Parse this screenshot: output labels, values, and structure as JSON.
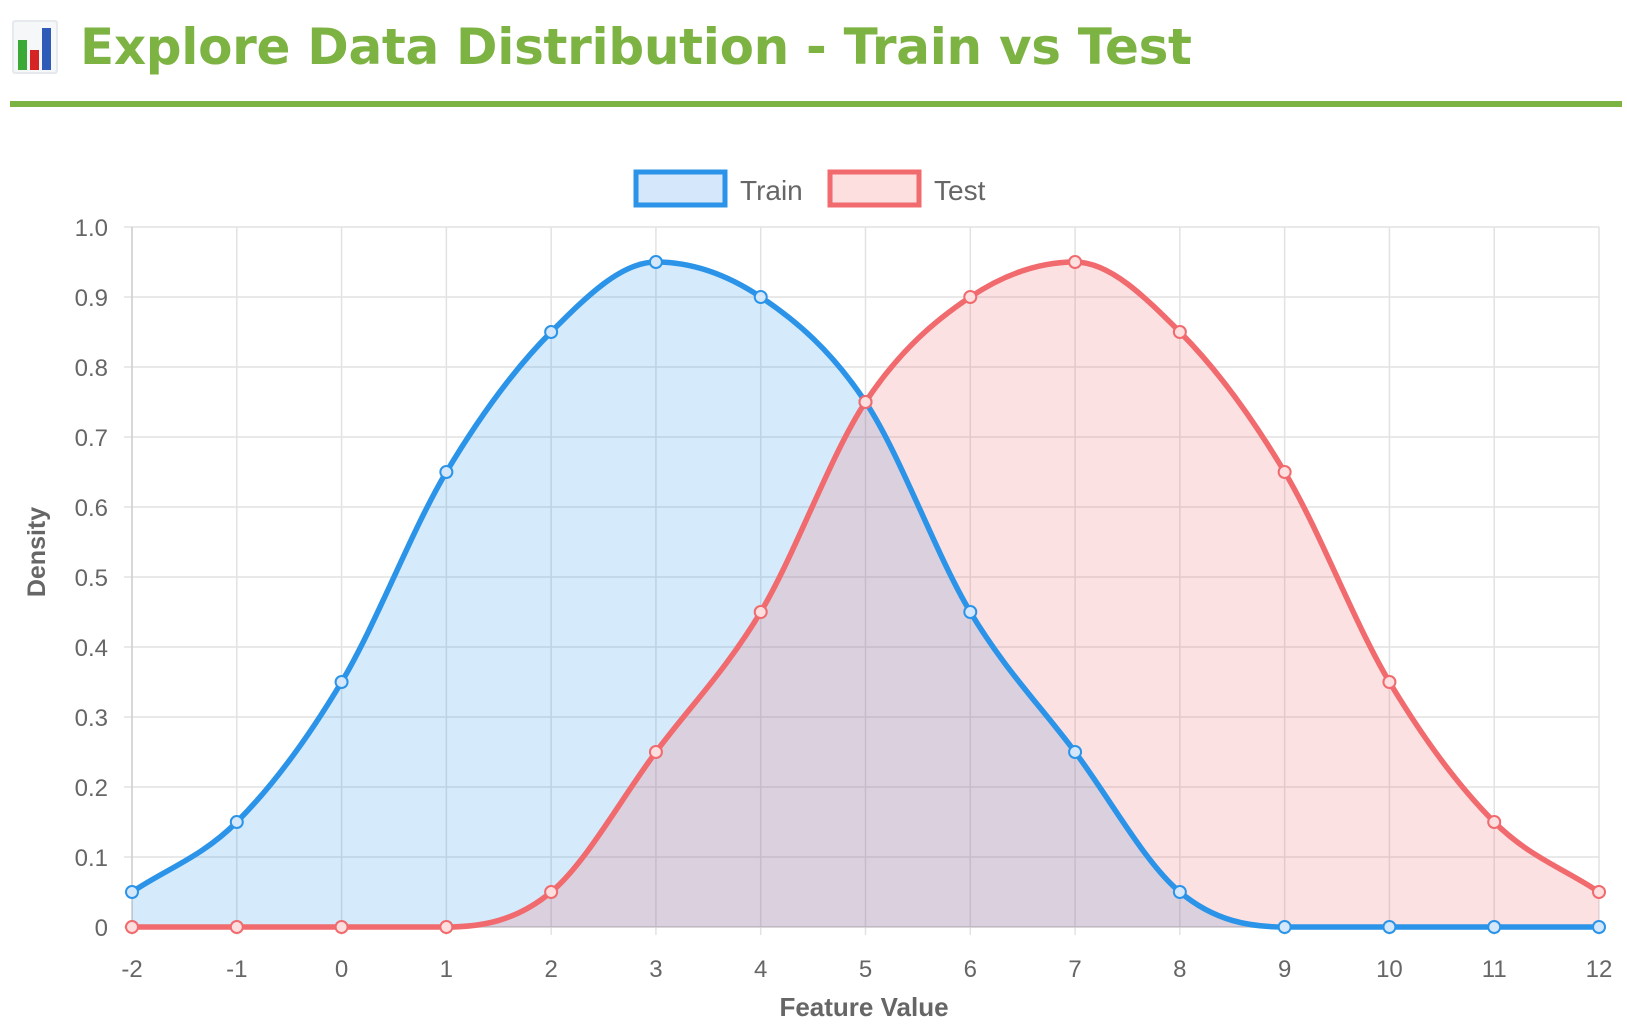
{
  "page": {
    "title": "Explore Data Distribution - Train vs Test",
    "icon": "bar-chart-icon",
    "accent_color": "#7cb342"
  },
  "chart_data": {
    "type": "line",
    "subtype": "filled-area",
    "x": [
      -2,
      -1,
      0,
      1,
      2,
      3,
      4,
      5,
      6,
      7,
      8,
      9,
      10,
      11,
      12
    ],
    "series": [
      {
        "name": "Train",
        "values": [
          0.05,
          0.15,
          0.35,
          0.65,
          0.85,
          0.95,
          0.9,
          0.75,
          0.45,
          0.25,
          0.05,
          0,
          0,
          0,
          0
        ],
        "line_color": "#2b94e8",
        "fill_color": "#d4e7fb"
      },
      {
        "name": "Test",
        "values": [
          0,
          0,
          0,
          0,
          0.05,
          0.25,
          0.45,
          0.75,
          0.9,
          0.95,
          0.85,
          0.65,
          0.35,
          0.15,
          0.05
        ],
        "line_color": "#f06a6e",
        "fill_color": "#fddfe0"
      }
    ],
    "xlabel": "Feature Value",
    "ylabel": "Density",
    "xlim": [
      -2,
      12
    ],
    "ylim": [
      0,
      1.0
    ],
    "x_ticks": [
      "-2",
      "-1",
      "0",
      "1",
      "2",
      "3",
      "4",
      "5",
      "6",
      "7",
      "8",
      "9",
      "10",
      "11",
      "12"
    ],
    "y_ticks": [
      "0",
      "0.1",
      "0.2",
      "0.3",
      "0.4",
      "0.5",
      "0.6",
      "0.7",
      "0.8",
      "0.9",
      "1.0"
    ],
    "grid": true,
    "legend_position": "top-center"
  }
}
